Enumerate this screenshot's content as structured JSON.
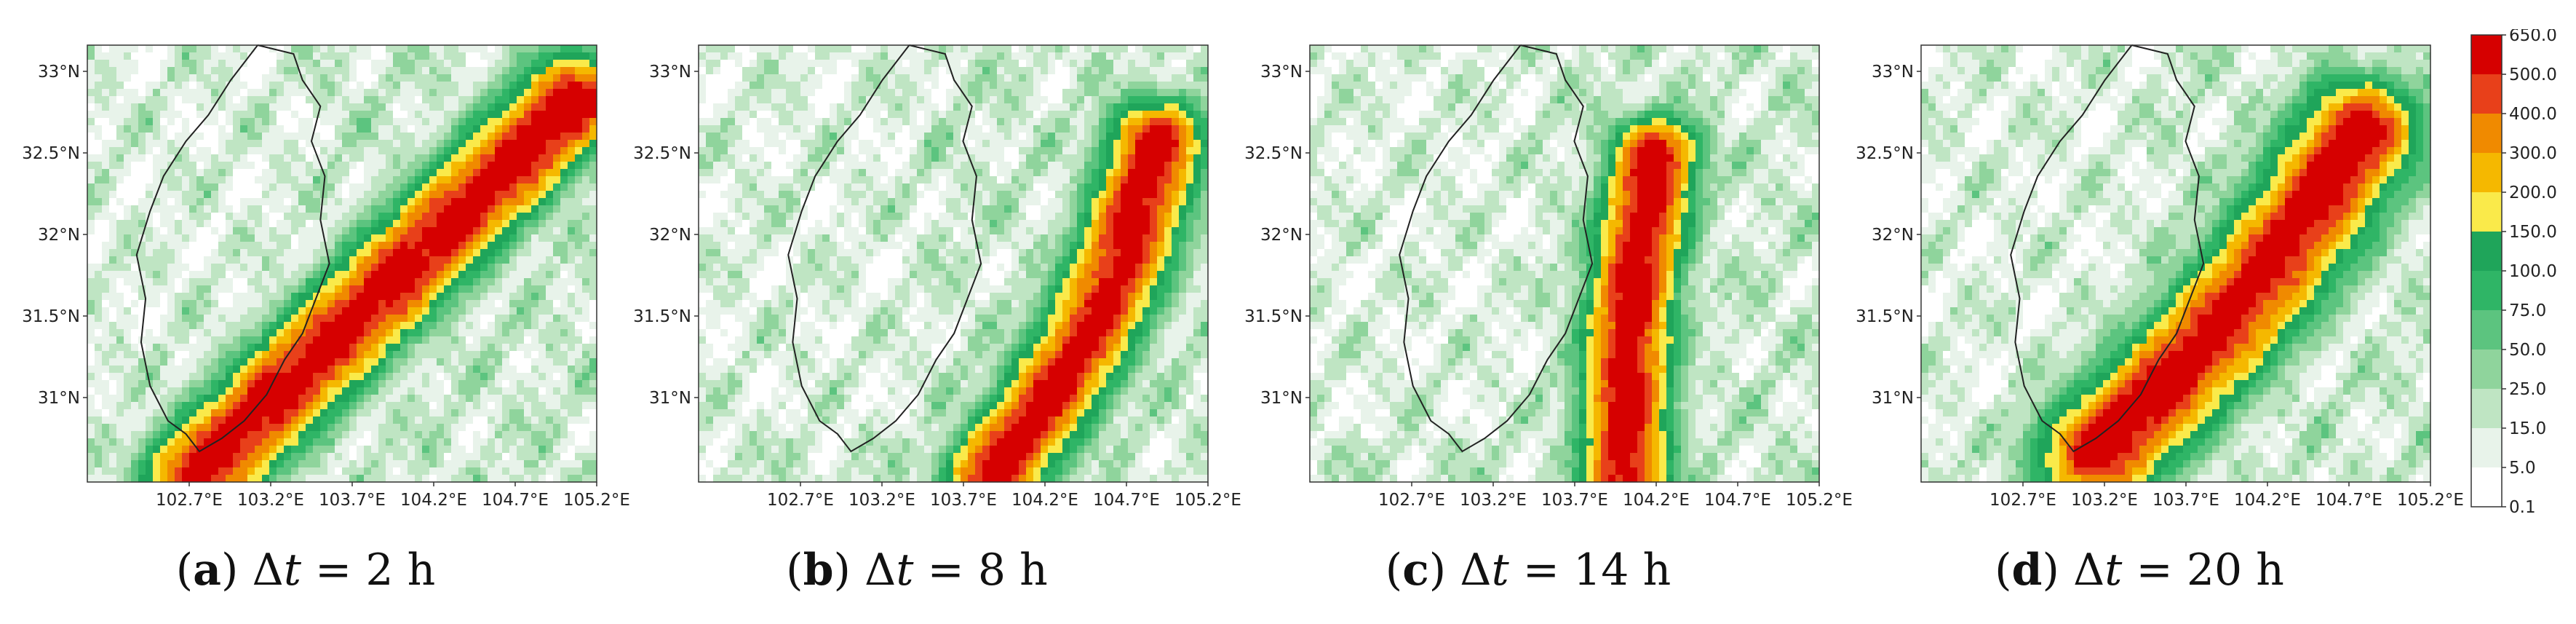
{
  "panels": [
    {
      "id": "a",
      "letter": "a",
      "value": "2",
      "unit": "h",
      "prefix": "Δ",
      "var": "t",
      "eq": " = "
    },
    {
      "id": "b",
      "letter": "b",
      "value": "8",
      "unit": "h",
      "prefix": "Δ",
      "var": "t",
      "eq": " = "
    },
    {
      "id": "c",
      "letter": "c",
      "value": "14",
      "unit": "h",
      "prefix": "Δ",
      "var": "t",
      "eq": " = "
    },
    {
      "id": "d",
      "letter": "d",
      "value": "20",
      "unit": "h",
      "prefix": "Δ",
      "var": "t",
      "eq": " = "
    }
  ],
  "lat_ticks": [
    "33°N",
    "32.5°N",
    "32°N",
    "31.5°N",
    "31°N"
  ],
  "lon_ticks": [
    "102.7°E",
    "103.2°E",
    "103.7°E",
    "104.2°E",
    "104.7°E",
    "105.2°E"
  ],
  "colorbar": {
    "labels": [
      "650.0",
      "500.0",
      "400.0",
      "300.0",
      "200.0",
      "150.0",
      "100.0",
      "75.0",
      "50.0",
      "25.0",
      "15.0",
      "5.0",
      "0.1"
    ],
    "colors": [
      "#d60000",
      "#e8401a",
      "#f08a00",
      "#f5b800",
      "#faea4a",
      "#1fa55a",
      "#2fb566",
      "#5cc47f",
      "#8fd49c",
      "#bfe5c3",
      "#e8f3ea",
      "#ffffff"
    ]
  }
}
